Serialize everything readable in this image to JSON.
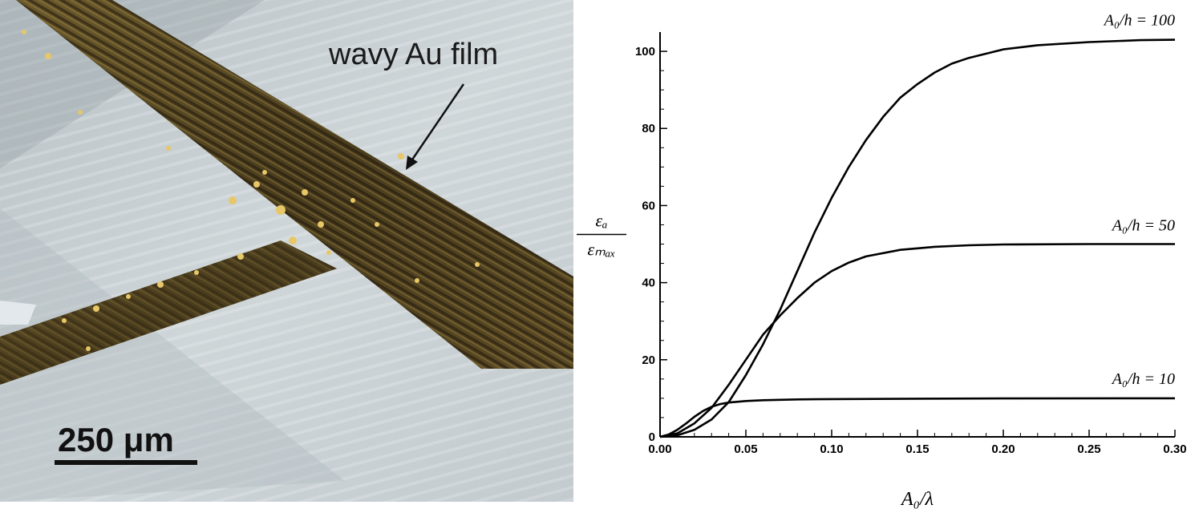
{
  "photo": {
    "annotation": "wavy Au film",
    "scale_bar_label": "250 μm"
  },
  "chart_data": {
    "type": "line",
    "xlabel": "A₀/λ",
    "ylabel_numerator": "εₐ",
    "ylabel_denominator": "εₘₐₓ",
    "xlim": [
      0,
      0.3
    ],
    "ylim": [
      0,
      105
    ],
    "xticks": [
      "0.00",
      "0.05",
      "0.10",
      "0.15",
      "0.20",
      "0.25",
      "0.30"
    ],
    "yticks": [
      "0",
      "20",
      "40",
      "60",
      "80",
      "100"
    ],
    "grid": false,
    "series": [
      {
        "name": "A₀/h = 100",
        "x": [
          0,
          0.01,
          0.02,
          0.03,
          0.04,
          0.05,
          0.06,
          0.07,
          0.08,
          0.09,
          0.1,
          0.11,
          0.12,
          0.13,
          0.14,
          0.15,
          0.16,
          0.17,
          0.18,
          0.2,
          0.22,
          0.25,
          0.28,
          0.3
        ],
        "y": [
          0,
          0.4,
          1.8,
          4.5,
          9,
          16,
          24,
          33,
          43,
          53,
          62,
          70,
          77,
          83,
          88,
          91.5,
          94.5,
          96.8,
          98.3,
          100.5,
          101.6,
          102.4,
          102.9,
          103
        ]
      },
      {
        "name": "A₀/h = 50",
        "x": [
          0,
          0.01,
          0.02,
          0.03,
          0.04,
          0.05,
          0.06,
          0.07,
          0.08,
          0.09,
          0.1,
          0.11,
          0.12,
          0.14,
          0.16,
          0.18,
          0.2,
          0.25,
          0.3
        ],
        "y": [
          0,
          0.9,
          3.5,
          7.5,
          13.5,
          20,
          26.5,
          31.5,
          36,
          40,
          43,
          45.2,
          46.8,
          48.5,
          49.3,
          49.7,
          49.9,
          50,
          50
        ]
      },
      {
        "name": "A₀/h = 10",
        "x": [
          0,
          0.005,
          0.01,
          0.015,
          0.02,
          0.025,
          0.03,
          0.035,
          0.04,
          0.05,
          0.06,
          0.08,
          0.1,
          0.15,
          0.2,
          0.3
        ],
        "y": [
          0,
          0.6,
          1.8,
          3.4,
          5.2,
          6.7,
          7.8,
          8.5,
          8.9,
          9.3,
          9.5,
          9.7,
          9.8,
          9.9,
          9.95,
          10
        ]
      }
    ]
  }
}
